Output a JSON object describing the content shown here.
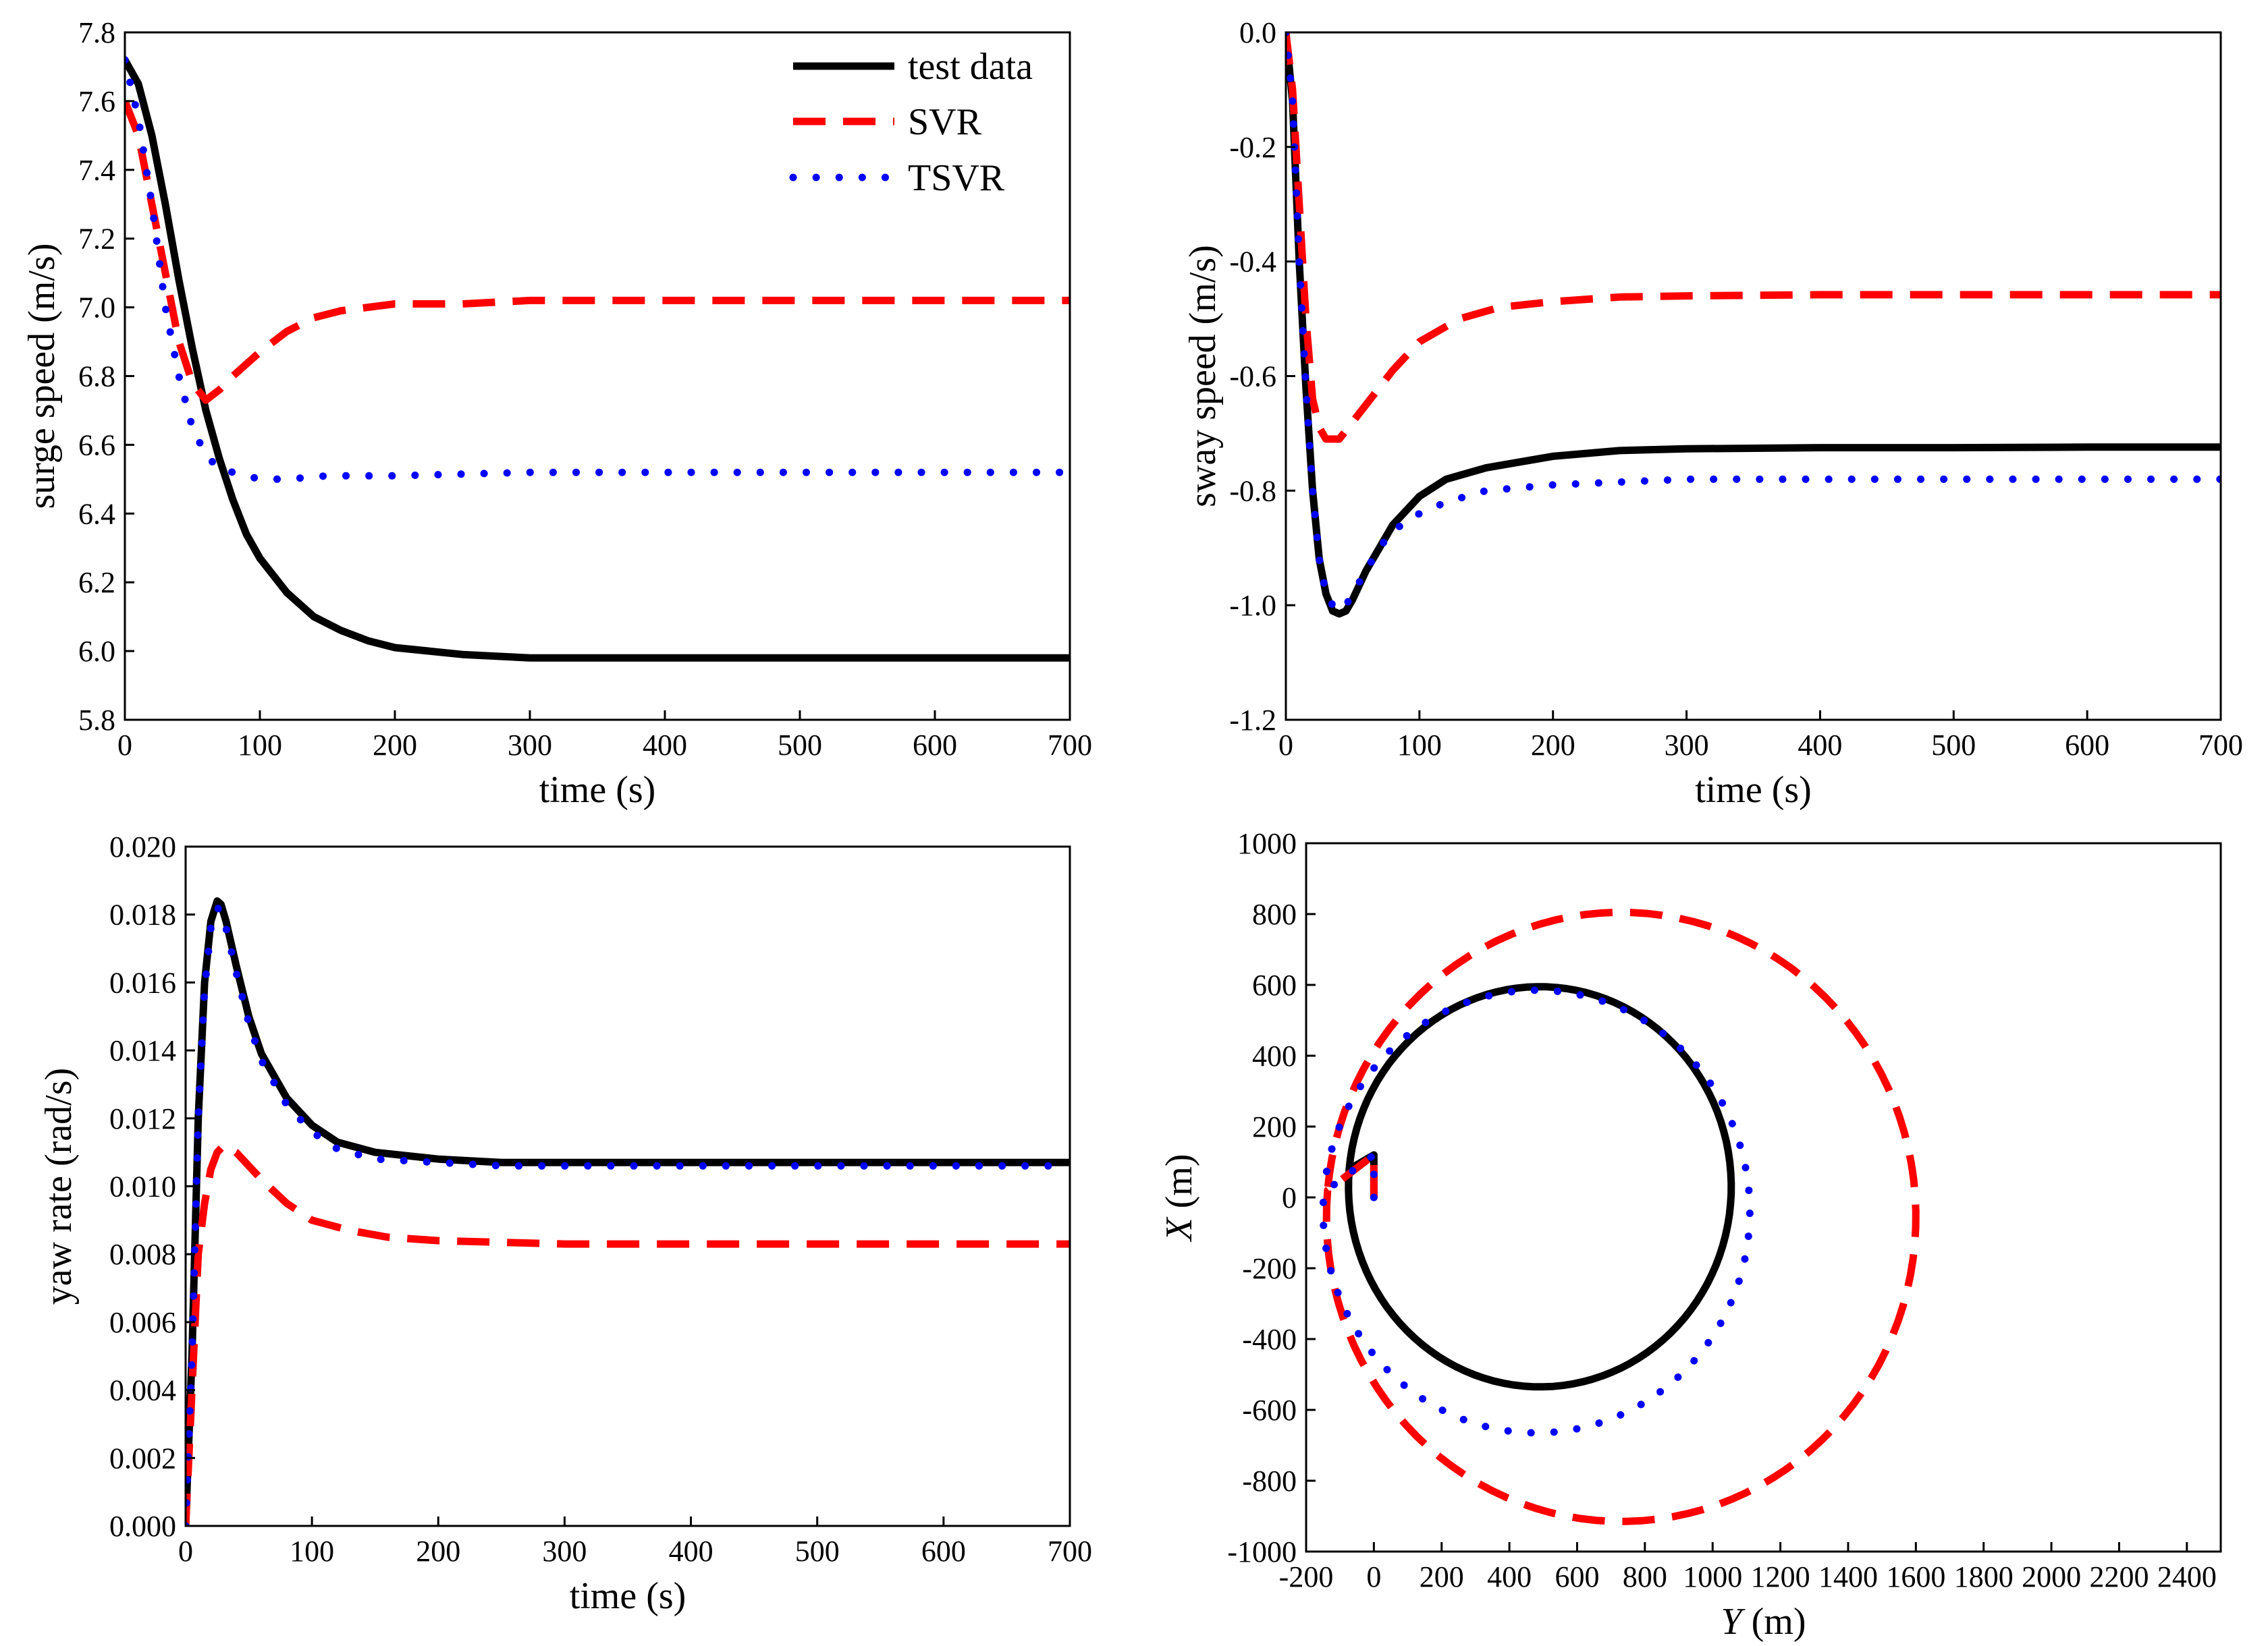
{
  "colors": {
    "test_data": "#000000",
    "svr": "#ff0000",
    "tsvr": "#0000ff"
  },
  "legend": {
    "entries": [
      "test data",
      "SVR",
      "TSVR"
    ]
  },
  "chart_data": [
    {
      "id": "surge",
      "type": "line",
      "xlabel": "time (s)",
      "ylabel": "surge speed (m/s)",
      "xlim": [
        0,
        700
      ],
      "ylim": [
        5.8,
        7.8
      ],
      "xticks": [
        0,
        100,
        200,
        300,
        400,
        500,
        600,
        700
      ],
      "xtick_labels": [
        "0",
        "100",
        "200",
        "300",
        "400",
        "500",
        "600",
        "700"
      ],
      "yticks": [
        5.8,
        6.0,
        6.2,
        6.4,
        6.6,
        6.8,
        7.0,
        7.2,
        7.4,
        7.6,
        7.8
      ],
      "ytick_labels": [
        "5.8",
        "6.0",
        "6.2",
        "6.4",
        "6.6",
        "6.8",
        "7.0",
        "7.2",
        "7.4",
        "7.6",
        "7.8"
      ],
      "legend_position": "top-right",
      "series": [
        {
          "name": "test data",
          "x": [
            0,
            10,
            20,
            30,
            40,
            50,
            60,
            70,
            80,
            90,
            100,
            120,
            140,
            160,
            180,
            200,
            250,
            300,
            400,
            500,
            600,
            700
          ],
          "y": [
            7.72,
            7.65,
            7.5,
            7.3,
            7.08,
            6.88,
            6.7,
            6.56,
            6.44,
            6.34,
            6.27,
            6.17,
            6.1,
            6.06,
            6.03,
            6.01,
            5.99,
            5.98,
            5.98,
            5.98,
            5.98,
            5.98
          ]
        },
        {
          "name": "SVR",
          "x": [
            0,
            10,
            20,
            30,
            40,
            50,
            60,
            70,
            80,
            100,
            120,
            140,
            160,
            180,
            200,
            250,
            300,
            400,
            500,
            600,
            700
          ],
          "y": [
            7.6,
            7.5,
            7.3,
            7.1,
            6.9,
            6.78,
            6.73,
            6.76,
            6.8,
            6.87,
            6.93,
            6.97,
            6.99,
            7.0,
            7.01,
            7.01,
            7.02,
            7.02,
            7.02,
            7.02,
            7.02
          ]
        },
        {
          "name": "TSVR",
          "x": [
            0,
            10,
            20,
            30,
            40,
            50,
            60,
            70,
            80,
            90,
            100,
            120,
            150,
            200,
            300,
            400,
            500,
            600,
            700
          ],
          "y": [
            7.72,
            7.55,
            7.3,
            7.0,
            6.8,
            6.65,
            6.57,
            6.53,
            6.52,
            6.51,
            6.5,
            6.5,
            6.51,
            6.51,
            6.52,
            6.52,
            6.52,
            6.52,
            6.52
          ]
        }
      ]
    },
    {
      "id": "sway",
      "type": "line",
      "xlabel": "time (s)",
      "ylabel": "sway speed (m/s)",
      "xlim": [
        0,
        700
      ],
      "ylim": [
        -1.2,
        0.0
      ],
      "xticks": [
        0,
        100,
        200,
        300,
        400,
        500,
        600,
        700
      ],
      "xtick_labels": [
        "0",
        "100",
        "200",
        "300",
        "400",
        "500",
        "600",
        "700"
      ],
      "yticks": [
        0.0,
        -0.2,
        -0.4,
        -0.6,
        -0.8,
        -1.0,
        -1.2
      ],
      "ytick_labels": [
        "0.0",
        "-0.2",
        "-0.4",
        "-0.6",
        "-0.8",
        "-1.0",
        "-1.2"
      ],
      "series": [
        {
          "name": "test data",
          "x": [
            0,
            5,
            10,
            15,
            20,
            25,
            30,
            35,
            40,
            45,
            50,
            60,
            70,
            80,
            100,
            120,
            150,
            200,
            250,
            300,
            400,
            500,
            600,
            700
          ],
          "y": [
            0.0,
            -0.12,
            -0.4,
            -0.62,
            -0.8,
            -0.92,
            -0.98,
            -1.01,
            -1.015,
            -1.01,
            -0.99,
            -0.94,
            -0.9,
            -0.86,
            -0.81,
            -0.78,
            -0.76,
            -0.74,
            -0.73,
            -0.727,
            -0.725,
            -0.725,
            -0.724,
            -0.724
          ]
        },
        {
          "name": "SVR",
          "x": [
            0,
            5,
            10,
            15,
            20,
            25,
            30,
            40,
            50,
            60,
            80,
            100,
            130,
            160,
            200,
            250,
            300,
            400,
            500,
            600,
            700
          ],
          "y": [
            0.0,
            -0.1,
            -0.3,
            -0.5,
            -0.64,
            -0.69,
            -0.71,
            -0.71,
            -0.68,
            -0.65,
            -0.59,
            -0.54,
            -0.5,
            -0.48,
            -0.47,
            -0.462,
            -0.46,
            -0.458,
            -0.458,
            -0.458,
            -0.458
          ]
        },
        {
          "name": "TSVR",
          "x": [
            0,
            5,
            10,
            15,
            20,
            25,
            30,
            35,
            40,
            45,
            50,
            60,
            70,
            80,
            100,
            120,
            150,
            200,
            250,
            300,
            400,
            500,
            600,
            700
          ],
          "y": [
            0.0,
            -0.12,
            -0.4,
            -0.62,
            -0.8,
            -0.92,
            -0.98,
            -1.0,
            -1.01,
            -1.0,
            -0.98,
            -0.94,
            -0.9,
            -0.87,
            -0.84,
            -0.82,
            -0.8,
            -0.79,
            -0.785,
            -0.78,
            -0.78,
            -0.78,
            -0.78,
            -0.78
          ]
        }
      ]
    },
    {
      "id": "yaw",
      "type": "line",
      "xlabel": "time (s)",
      "ylabel": "yaw rate (rad/s)",
      "xlim": [
        0,
        700
      ],
      "ylim": [
        0.0,
        0.02
      ],
      "xticks": [
        0,
        100,
        200,
        300,
        400,
        500,
        600,
        700
      ],
      "xtick_labels": [
        "0",
        "100",
        "200",
        "300",
        "400",
        "500",
        "600",
        "700"
      ],
      "yticks": [
        0.0,
        0.002,
        0.004,
        0.006,
        0.008,
        0.01,
        0.012,
        0.014,
        0.016,
        0.018,
        0.02
      ],
      "ytick_labels": [
        "0.000",
        "0.002",
        "0.004",
        "0.006",
        "0.008",
        "0.010",
        "0.012",
        "0.014",
        "0.016",
        "0.018",
        "0.020"
      ],
      "series": [
        {
          "name": "test data",
          "x": [
            0,
            5,
            10,
            15,
            20,
            25,
            28,
            32,
            40,
            50,
            60,
            80,
            100,
            120,
            150,
            200,
            250,
            300,
            400,
            500,
            600,
            700
          ],
          "y": [
            0.0,
            0.005,
            0.012,
            0.016,
            0.0178,
            0.0184,
            0.0183,
            0.0178,
            0.0165,
            0.015,
            0.0139,
            0.0126,
            0.0118,
            0.0113,
            0.011,
            0.0108,
            0.0107,
            0.0107,
            0.0107,
            0.0107,
            0.0107,
            0.0107
          ]
        },
        {
          "name": "SVR",
          "x": [
            0,
            5,
            10,
            15,
            20,
            25,
            30,
            40,
            60,
            80,
            100,
            130,
            160,
            200,
            250,
            300,
            400,
            500,
            600,
            700
          ],
          "y": [
            0.0,
            0.004,
            0.008,
            0.0095,
            0.0105,
            0.011,
            0.0112,
            0.011,
            0.0102,
            0.0095,
            0.009,
            0.0087,
            0.0085,
            0.0084,
            0.00835,
            0.0083,
            0.0083,
            0.0083,
            0.0083,
            0.0083
          ]
        },
        {
          "name": "TSVR",
          "x": [
            0,
            5,
            10,
            15,
            20,
            25,
            28,
            32,
            40,
            50,
            60,
            80,
            100,
            120,
            150,
            200,
            250,
            300,
            400,
            500,
            600,
            700
          ],
          "y": [
            0.0,
            0.005,
            0.012,
            0.0158,
            0.0176,
            0.0182,
            0.0181,
            0.0176,
            0.0163,
            0.0148,
            0.0137,
            0.0124,
            0.0116,
            0.0111,
            0.0108,
            0.0107,
            0.0106,
            0.0106,
            0.0106,
            0.0106,
            0.0106,
            0.0106
          ]
        }
      ]
    },
    {
      "id": "trajectory",
      "type": "line",
      "xlabel_italic": "Y",
      "xlabel_rest": " (m)",
      "ylabel_italic": "X",
      "ylabel_rest": " (m)",
      "xlim": [
        -200,
        2500
      ],
      "ylim": [
        -1000,
        1000
      ],
      "xticks": [
        -200,
        0,
        200,
        400,
        600,
        800,
        1000,
        1200,
        1400,
        1600,
        1800,
        2000,
        2200,
        2400
      ],
      "xtick_labels": [
        "-200",
        "0",
        "200",
        "400",
        "600",
        "800",
        "1000",
        "1200",
        "1400",
        "1600",
        "1800",
        "2000",
        "2200",
        "2400"
      ],
      "yticks": [
        -1000,
        -800,
        -600,
        -400,
        -200,
        0,
        200,
        400,
        600,
        800,
        1000
      ],
      "ytick_labels": [
        "-1000",
        "-800",
        "-600",
        "-400",
        "-200",
        "0",
        "200",
        "400",
        "600",
        "800",
        "1000"
      ],
      "series": [
        {
          "name": "test data",
          "circle": {
            "center_y": 490,
            "center_x": 30,
            "radius_y": 565,
            "radius_x": 565,
            "start_deg": 175
          }
        },
        {
          "name": "SVR",
          "circle": {
            "center_y": 730,
            "center_x": -55,
            "radius_y": 870,
            "radius_x": 860,
            "start_deg": 175
          }
        },
        {
          "name": "TSVR",
          "circle": {
            "center_y": 480,
            "center_x": -40,
            "radius_y": 630,
            "radius_x": 625,
            "start_deg": 175
          }
        }
      ]
    }
  ]
}
